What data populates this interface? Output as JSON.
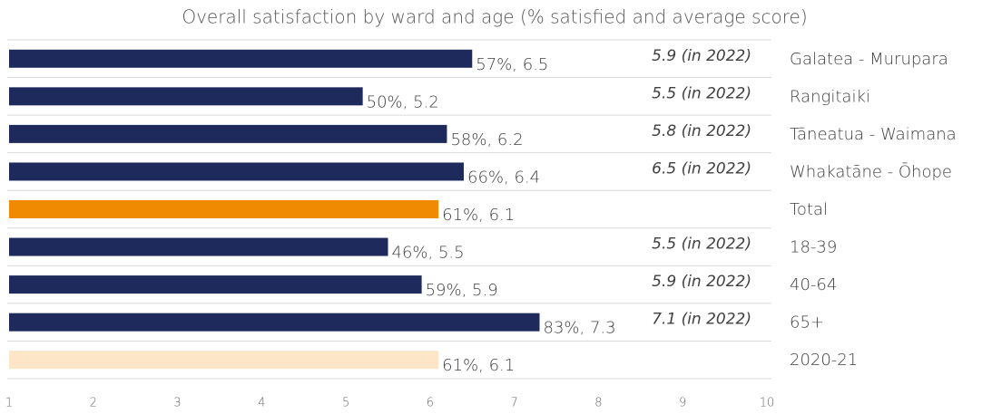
{
  "chart_data": {
    "type": "bar",
    "orientation": "horizontal",
    "title": "Overall satisfaction by ward and age (% satisfied and average score)",
    "categories": [
      "Galatea - Murupara",
      "Rangitaiki",
      "Tāneatua - Waimana",
      "Whakatāne - Ōhope",
      "Total",
      "18-39",
      "40-64",
      "65+",
      "2020-21"
    ],
    "values": [
      6.5,
      5.2,
      6.2,
      6.4,
      6.1,
      5.5,
      5.9,
      7.3,
      6.1
    ],
    "value_labels": [
      "57%, 6.5",
      "50%, 5.2",
      "58%, 6.2",
      "66%, 6.4",
      "61%, 6.1",
      "46%, 5.5",
      "59%, 5.9",
      "83%, 7.3",
      "61%, 6.1"
    ],
    "annotations": [
      "5.9 (in 2022)",
      "5.5 (in 2022)",
      "5.8 (in 2022)",
      "6.5 (in 2022)",
      null,
      "5.5 (in 2022)",
      "5.9 (in 2022)",
      "7.1 (in 2022)",
      null
    ],
    "colors": [
      "#1f2a5c",
      "#1f2a5c",
      "#1f2a5c",
      "#1f2a5c",
      "#f08a00",
      "#1f2a5c",
      "#1f2a5c",
      "#1f2a5c",
      "#fde5c8"
    ],
    "xlim": [
      1,
      10
    ],
    "xticks": [
      1,
      2,
      3,
      4,
      5,
      6,
      7,
      8,
      9,
      10
    ]
  }
}
